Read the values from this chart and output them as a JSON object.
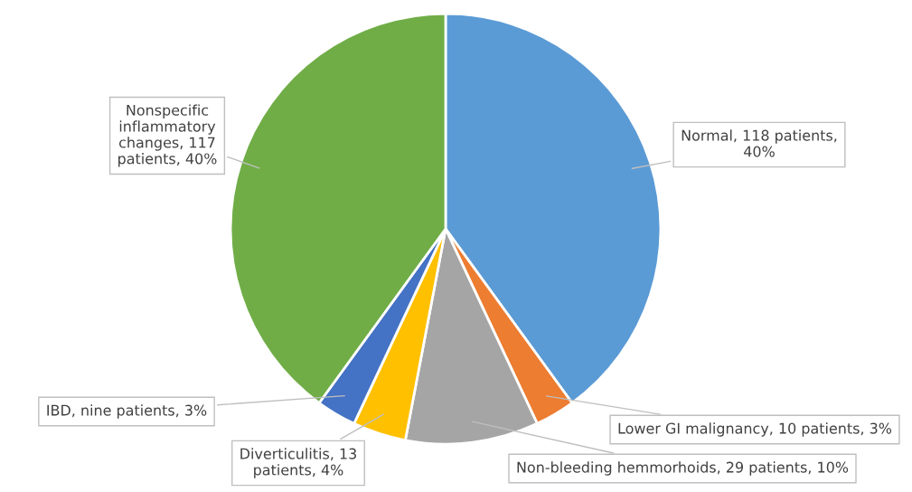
{
  "chart_data": {
    "type": "pie",
    "categories": [
      "Normal",
      "Lower GI malignancy",
      "Non-bleeding hemmorhoids",
      "Diverticulitis",
      "IBD",
      "Nonspecific inflammatory changes"
    ],
    "values": [
      40,
      3,
      10,
      4,
      3,
      40
    ],
    "colors": [
      "#5b9bd5",
      "#ed7d31",
      "#a5a5a5",
      "#ffc000",
      "#4472c4",
      "#70ad47"
    ],
    "value_labels": [
      "118 patients, 40%",
      "10 patients, 3%",
      "29 patients, 10%",
      "13 patients, 4%",
      "nine patients, 3%",
      "117 patients, 40%"
    ]
  }
}
